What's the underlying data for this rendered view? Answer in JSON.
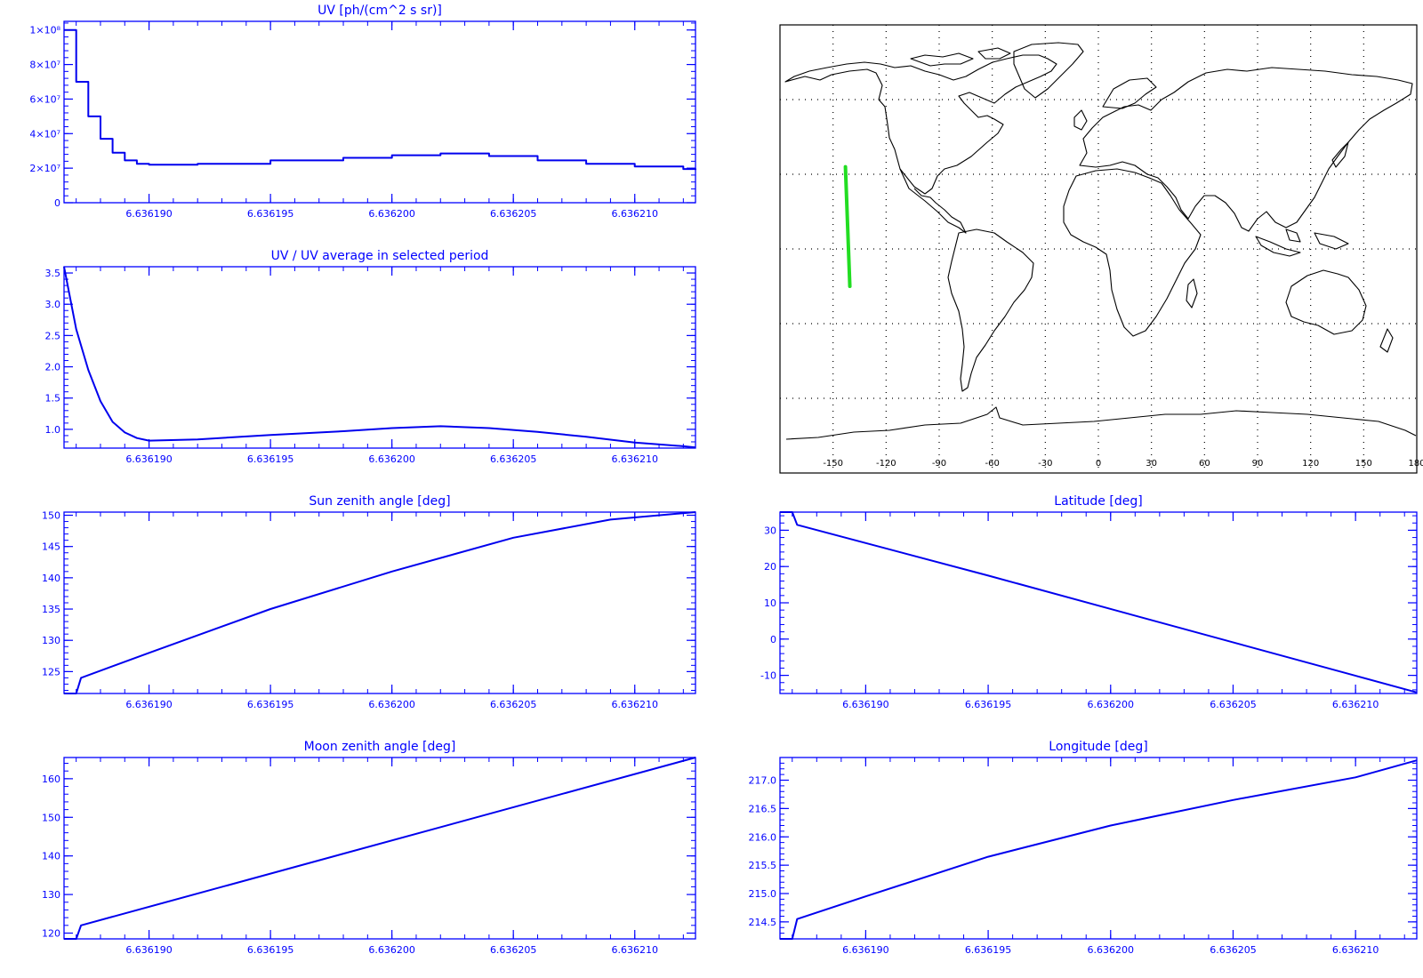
{
  "colors": {
    "axis": "#0000ff",
    "line": "#0000ee",
    "track": "#22dd22",
    "coast": "#000000",
    "grid": "#000000"
  },
  "chart_data": [
    {
      "id": "uv",
      "type": "line",
      "style": "step",
      "title": "UV [ph/(cm^2 s sr)]",
      "xlabel": "",
      "ylabel": "",
      "xlim": [
        6.6361865,
        6.6362125
      ],
      "ylim": [
        0,
        105000000.0
      ],
      "xticks": [
        6.63619,
        6.636195,
        6.6362,
        6.636205,
        6.63621
      ],
      "xticklabels": [
        "6.636190",
        "6.636195",
        "6.636200",
        "6.636205",
        "6.636210"
      ],
      "yticks": [
        0,
        20000000.0,
        40000000.0,
        60000000.0,
        80000000.0,
        100000000.0
      ],
      "yticklabels": [
        "0",
        "2×10⁷",
        "4×10⁷",
        "6×10⁷",
        "8×10⁷",
        "1×10⁸"
      ],
      "series": [
        {
          "x": [
            6.6361865,
            6.636187,
            6.6361875,
            6.636188,
            6.6361885,
            6.636189,
            6.6361895,
            6.63619,
            6.636192,
            6.636195,
            6.636198,
            6.6362,
            6.636202,
            6.636204,
            6.636206,
            6.636208,
            6.63621,
            6.636212,
            6.6362125
          ],
          "y": [
            100000000.0,
            70000000.0,
            50000000.0,
            37000000.0,
            29000000.0,
            24500000.0,
            22500000.0,
            22000000.0,
            22500000.0,
            24500000.0,
            26000000.0,
            27500000.0,
            28500000.0,
            27000000.0,
            24500000.0,
            22500000.0,
            21000000.0,
            19500000.0,
            19000000.0
          ]
        }
      ]
    },
    {
      "id": "ratio",
      "type": "line",
      "title": "UV / UV average in selected period",
      "xlabel": "",
      "ylabel": "",
      "xlim": [
        6.6361865,
        6.6362125
      ],
      "ylim": [
        0.7,
        3.6
      ],
      "xticks": [
        6.63619,
        6.636195,
        6.6362,
        6.636205,
        6.63621
      ],
      "xticklabels": [
        "6.636190",
        "6.636195",
        "6.636200",
        "6.636205",
        "6.636210"
      ],
      "yticks": [
        1.0,
        1.5,
        2.0,
        2.5,
        3.0,
        3.5
      ],
      "yticklabels": [
        "1.0",
        "1.5",
        "2.0",
        "2.5",
        "3.0",
        "3.5"
      ],
      "series": [
        {
          "x": [
            6.6361865,
            6.636187,
            6.6361875,
            6.636188,
            6.6361885,
            6.636189,
            6.6361895,
            6.63619,
            6.636192,
            6.636195,
            6.636198,
            6.6362,
            6.636202,
            6.636204,
            6.636206,
            6.636208,
            6.63621,
            6.636212,
            6.6362125
          ],
          "y": [
            3.6,
            2.6,
            1.95,
            1.45,
            1.12,
            0.95,
            0.86,
            0.82,
            0.84,
            0.91,
            0.97,
            1.02,
            1.05,
            1.02,
            0.96,
            0.88,
            0.79,
            0.73,
            0.71
          ]
        }
      ]
    },
    {
      "id": "sza",
      "type": "line",
      "title": "Sun zenith angle [deg]",
      "xlabel": "",
      "ylabel": "",
      "xlim": [
        6.6361865,
        6.6362125
      ],
      "ylim": [
        121.5,
        150.5
      ],
      "xticks": [
        6.63619,
        6.636195,
        6.6362,
        6.636205,
        6.63621
      ],
      "xticklabels": [
        "6.636190",
        "6.636195",
        "6.636200",
        "6.636205",
        "6.636210"
      ],
      "yticks": [
        125,
        130,
        135,
        140,
        145,
        150
      ],
      "yticklabels": [
        "125",
        "130",
        "135",
        "140",
        "145",
        "150"
      ],
      "series": [
        {
          "x": [
            6.6361865,
            6.636187,
            6.6361872,
            6.63619,
            6.636195,
            6.6362,
            6.636205,
            6.636209,
            6.6362125
          ],
          "y": [
            121.5,
            121.5,
            124.0,
            128.0,
            135.0,
            141.0,
            146.4,
            149.3,
            150.5
          ]
        }
      ]
    },
    {
      "id": "lat",
      "type": "line",
      "title": "Latitude [deg]",
      "xlabel": "",
      "ylabel": "",
      "xlim": [
        6.6361865,
        6.6362125
      ],
      "ylim": [
        -15,
        35
      ],
      "xticks": [
        6.63619,
        6.636195,
        6.6362,
        6.636205,
        6.63621
      ],
      "xticklabels": [
        "6.636190",
        "6.636195",
        "6.636200",
        "6.636205",
        "6.636210"
      ],
      "yticks": [
        -10,
        0,
        10,
        20,
        30
      ],
      "yticklabels": [
        "-10",
        "0",
        "10",
        "20",
        "30"
      ],
      "series": [
        {
          "x": [
            6.6361865,
            6.636187,
            6.6361872,
            6.636195,
            6.6362125
          ],
          "y": [
            35,
            35,
            31.5,
            17.5,
            -14.7
          ]
        }
      ]
    },
    {
      "id": "mza",
      "type": "line",
      "title": "Moon zenith angle [deg]",
      "xlabel": "",
      "ylabel": "",
      "xlim": [
        6.6361865,
        6.6362125
      ],
      "ylim": [
        118.5,
        165.5
      ],
      "xticks": [
        6.63619,
        6.636195,
        6.6362,
        6.636205,
        6.63621
      ],
      "xticklabels": [
        "6.636190",
        "6.636195",
        "6.636200",
        "6.636205",
        "6.636210"
      ],
      "yticks": [
        120,
        130,
        140,
        150,
        160
      ],
      "yticklabels": [
        "120",
        "130",
        "140",
        "150",
        "160"
      ],
      "series": [
        {
          "x": [
            6.6361865,
            6.636187,
            6.6361872,
            6.6362125
          ],
          "y": [
            118.5,
            118.5,
            122.0,
            165.5
          ]
        }
      ]
    },
    {
      "id": "lon",
      "type": "line",
      "title": "Longitude [deg]",
      "xlabel": "",
      "ylabel": "",
      "xlim": [
        6.6361865,
        6.6362125
      ],
      "ylim": [
        214.2,
        217.4
      ],
      "xticks": [
        6.63619,
        6.636195,
        6.6362,
        6.636205,
        6.63621
      ],
      "xticklabels": [
        "6.636190",
        "6.636195",
        "6.636200",
        "6.636205",
        "6.636210"
      ],
      "yticks": [
        214.5,
        215.0,
        215.5,
        216.0,
        216.5,
        217.0
      ],
      "yticklabels": [
        "214.5",
        "215.0",
        "215.5",
        "216.0",
        "216.5",
        "217.0"
      ],
      "series": [
        {
          "x": [
            6.6361865,
            6.636187,
            6.6361872,
            6.63619,
            6.636195,
            6.6362,
            6.636205,
            6.63621,
            6.6362125
          ],
          "y": [
            214.2,
            214.2,
            214.55,
            214.95,
            215.65,
            216.2,
            216.65,
            217.05,
            217.35
          ]
        }
      ]
    }
  ],
  "map": {
    "type": "map",
    "projection": "equirectangular",
    "lon_range": [
      -180,
      180
    ],
    "lat_range": [
      -90,
      90
    ],
    "xticks": [
      -150,
      -120,
      -90,
      -60,
      -30,
      0,
      30,
      60,
      90,
      120,
      150,
      180
    ],
    "xticklabels": [
      "-150",
      "-120",
      "-90",
      "-60",
      "-30",
      "0",
      "30",
      "60",
      "90",
      "120",
      "150",
      "180"
    ],
    "track": {
      "lon": [
        -143,
        -140.5
      ],
      "lat": [
        33,
        -15
      ]
    }
  }
}
